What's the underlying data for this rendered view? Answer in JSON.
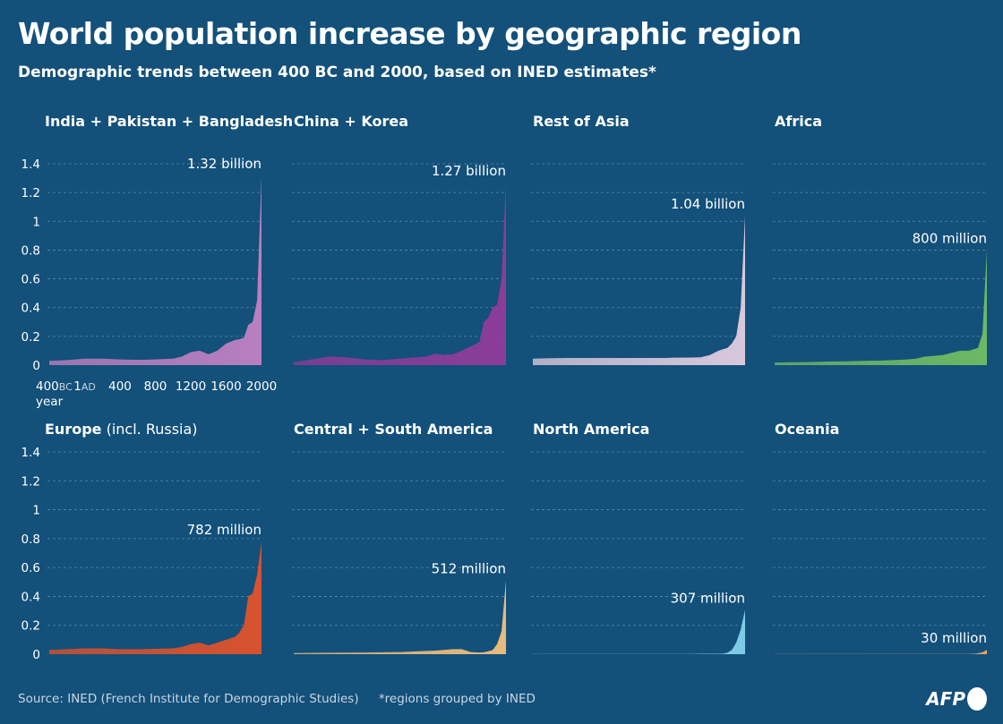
{
  "title": "World population increase by geographic region",
  "subtitle": "Demographic trends between 400 BC and 2000, based on INED estimates*",
  "footer": {
    "source": "Source: INED (French Institute for Demographic Studies)",
    "note": "*regions grouped by INED"
  },
  "logo": "AFP",
  "chart_data": {
    "type": "area",
    "xlabel": "year",
    "ylim": [
      0,
      1.4
    ],
    "yticks": [
      "0",
      "0.2",
      "0.4",
      "0.6",
      "0.8",
      "1",
      "1.2",
      "1.4"
    ],
    "xlim": [
      -400,
      2000
    ],
    "xticks": [
      {
        "value": -400,
        "label": "400",
        "suffix": "BC"
      },
      {
        "value": 1,
        "label": "1",
        "suffix": "AD"
      },
      {
        "value": 400,
        "label": "400",
        "suffix": ""
      },
      {
        "value": 800,
        "label": "800",
        "suffix": ""
      },
      {
        "value": 1200,
        "label": "1200",
        "suffix": ""
      },
      {
        "value": 1600,
        "label": "1600",
        "suffix": ""
      },
      {
        "value": 2000,
        "label": "2000",
        "suffix": ""
      }
    ],
    "grid": true,
    "years": [
      -400,
      -200,
      0,
      200,
      400,
      600,
      800,
      1000,
      1100,
      1200,
      1300,
      1400,
      1500,
      1600,
      1700,
      1750,
      1800,
      1850,
      1900,
      1950,
      2000
    ],
    "panels": [
      {
        "title": "India + Pakistan + Bangladesh",
        "color": "#b87fc0",
        "end_label": "1.32 billion",
        "values": [
          0.03,
          0.035,
          0.045,
          0.045,
          0.04,
          0.037,
          0.04,
          0.045,
          0.06,
          0.09,
          0.1,
          0.075,
          0.1,
          0.15,
          0.175,
          0.18,
          0.19,
          0.28,
          0.3,
          0.45,
          1.32
        ]
      },
      {
        "title": "China + Korea",
        "color": "#8b3d98",
        "end_label": "1.27 billion",
        "values": [
          0.02,
          0.04,
          0.06,
          0.055,
          0.04,
          0.035,
          0.045,
          0.055,
          0.06,
          0.08,
          0.07,
          0.075,
          0.1,
          0.13,
          0.16,
          0.3,
          0.33,
          0.4,
          0.42,
          0.6,
          1.27
        ]
      },
      {
        "title": "Rest of Asia",
        "color": "#d8c8dc",
        "end_label": "1.04 billion",
        "values": [
          0.045,
          0.048,
          0.05,
          0.05,
          0.05,
          0.05,
          0.05,
          0.05,
          0.05,
          0.052,
          0.052,
          0.053,
          0.055,
          0.07,
          0.1,
          0.11,
          0.12,
          0.15,
          0.2,
          0.4,
          1.04
        ]
      },
      {
        "title": "Africa",
        "color": "#6cb866",
        "end_label": "800 million",
        "values": [
          0.018,
          0.02,
          0.022,
          0.025,
          0.027,
          0.03,
          0.032,
          0.037,
          0.04,
          0.045,
          0.06,
          0.065,
          0.07,
          0.085,
          0.1,
          0.1,
          0.1,
          0.11,
          0.12,
          0.22,
          0.8
        ]
      },
      {
        "title": "Europe",
        "title_suffix": " (incl. Russia)",
        "color": "#d8522e",
        "end_label": "782 million",
        "values": [
          0.03,
          0.035,
          0.04,
          0.04,
          0.035,
          0.035,
          0.037,
          0.04,
          0.05,
          0.07,
          0.08,
          0.06,
          0.08,
          0.1,
          0.12,
          0.15,
          0.2,
          0.4,
          0.42,
          0.55,
          0.782
        ]
      },
      {
        "title": "Central + South America",
        "color": "#e8bb7c",
        "end_label": "512 million",
        "values": [
          0.008,
          0.009,
          0.01,
          0.011,
          0.012,
          0.013,
          0.015,
          0.02,
          0.022,
          0.025,
          0.03,
          0.035,
          0.035,
          0.015,
          0.012,
          0.013,
          0.02,
          0.03,
          0.07,
          0.16,
          0.512
        ]
      },
      {
        "title": "North America",
        "color": "#7ecbe8",
        "end_label": "307 million",
        "values": [
          0.002,
          0.002,
          0.002,
          0.002,
          0.002,
          0.002,
          0.002,
          0.002,
          0.002,
          0.002,
          0.002,
          0.002,
          0.003,
          0.003,
          0.003,
          0.004,
          0.01,
          0.03,
          0.08,
          0.17,
          0.307
        ]
      },
      {
        "title": "Oceania",
        "color": "#e4a46e",
        "end_label": "30 million",
        "values": [
          0.001,
          0.001,
          0.001,
          0.001,
          0.001,
          0.001,
          0.001,
          0.001,
          0.001,
          0.001,
          0.002,
          0.002,
          0.002,
          0.002,
          0.002,
          0.002,
          0.002,
          0.003,
          0.006,
          0.013,
          0.03
        ]
      }
    ]
  }
}
